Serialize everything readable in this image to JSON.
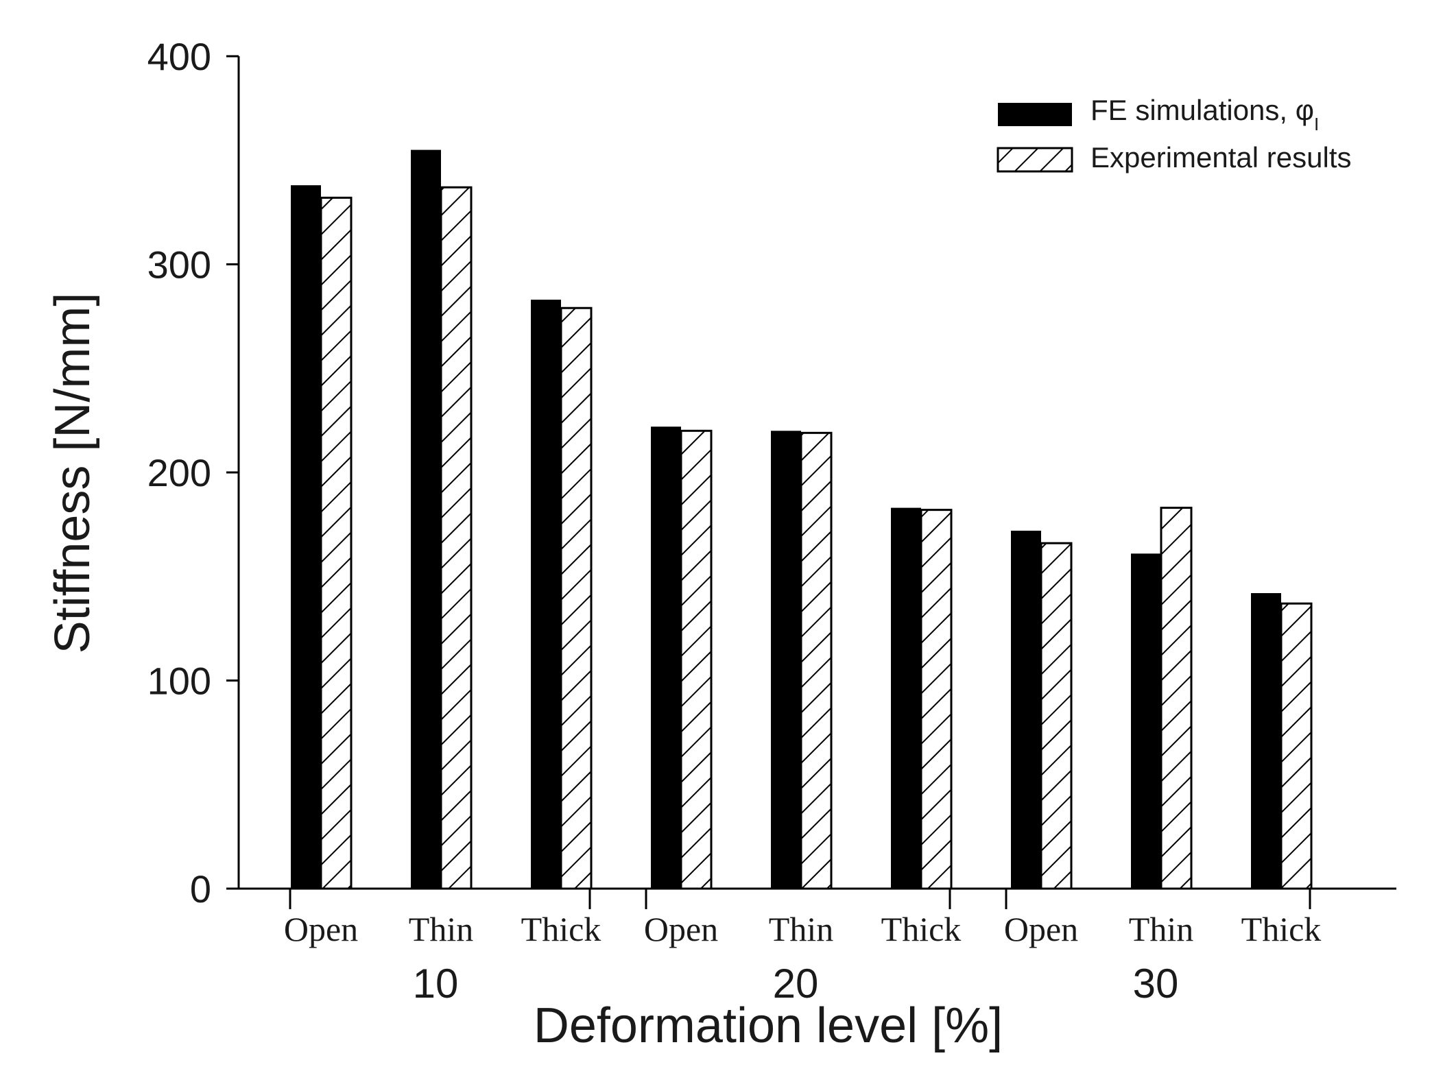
{
  "chart_data": {
    "type": "bar",
    "title": "",
    "xlabel": "Deformation level [%]",
    "ylabel": "Stiffness [N/mm]",
    "ylim": [
      0,
      400
    ],
    "yticks": [
      0,
      100,
      200,
      300,
      400
    ],
    "categories": [
      "Open",
      "Thin",
      "Thick",
      "Open",
      "Thin",
      "Thick",
      "Open",
      "Thin",
      "Thick"
    ],
    "groups": [
      {
        "label": "10",
        "span": [
          0,
          2
        ]
      },
      {
        "label": "20",
        "span": [
          3,
          5
        ]
      },
      {
        "label": "30",
        "span": [
          6,
          8
        ]
      }
    ],
    "series": [
      {
        "name": "FE simulations, φ",
        "subscript": "I",
        "fill": "solid",
        "color": "#000000",
        "values": [
          338,
          355,
          283,
          222,
          220,
          183,
          172,
          161,
          142
        ]
      },
      {
        "name": "Experimental results",
        "fill": "hatched",
        "color": "#000000",
        "values": [
          332,
          337,
          279,
          220,
          219,
          182,
          166,
          183,
          137
        ]
      }
    ],
    "legend_position": "top-right",
    "grid": false
  }
}
